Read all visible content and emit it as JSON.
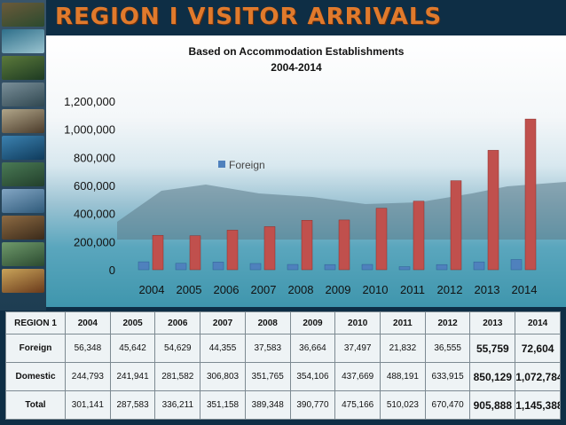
{
  "title": "REGION I VISITOR ARRIVALS",
  "chart_data": {
    "type": "bar",
    "title": "Based on Accommodation Establishments",
    "subtitle": "2004-2014",
    "categories": [
      "2004",
      "2005",
      "2006",
      "2007",
      "2008",
      "2009",
      "2010",
      "2011",
      "2012",
      "2013",
      "2014"
    ],
    "series": [
      {
        "name": "Foreign",
        "values": [
          56348,
          45642,
          54629,
          44355,
          37583,
          36664,
          37497,
          21832,
          36555,
          55759,
          72604
        ],
        "color": "#4f81bd"
      },
      {
        "name": "",
        "values": [
          244793,
          241941,
          281582,
          306803,
          351765,
          354106,
          437669,
          488191,
          633915,
          850129,
          1072784
        ],
        "color": "#c0504d"
      }
    ],
    "ylim": [
      0,
      1200000
    ],
    "yticks": [
      "0",
      "200,000",
      "400,000",
      "600,000",
      "800,000",
      "1,000,000",
      "1,200,000"
    ],
    "yticks_values": [
      0,
      200000,
      400000,
      600000,
      800000,
      1000000,
      1200000
    ],
    "legend": "inside-upper-middle",
    "grid": false
  },
  "table": {
    "header": [
      "REGION 1",
      "2004",
      "2005",
      "2006",
      "2007",
      "2008",
      "2009",
      "2010",
      "2011",
      "2012",
      "2013",
      "2014"
    ],
    "rows": [
      {
        "label": "Foreign",
        "values": [
          "56,348",
          "45,642",
          "54,629",
          "44,355",
          "37,583",
          "36,664",
          "37,497",
          "21,832",
          "36,555",
          "55,759",
          "72,604"
        ]
      },
      {
        "label": "Domestic",
        "values": [
          "244,793",
          "241,941",
          "281,582",
          "306,803",
          "351,765",
          "354,106",
          "437,669",
          "488,191",
          "633,915",
          "850,129",
          "1,072,784"
        ]
      },
      {
        "label": "Total",
        "values": [
          "301,141",
          "287,583",
          "336,211",
          "351,158",
          "389,348",
          "390,770",
          "475,166",
          "510,023",
          "670,470",
          "905,888",
          "1,145,388"
        ]
      }
    ]
  }
}
